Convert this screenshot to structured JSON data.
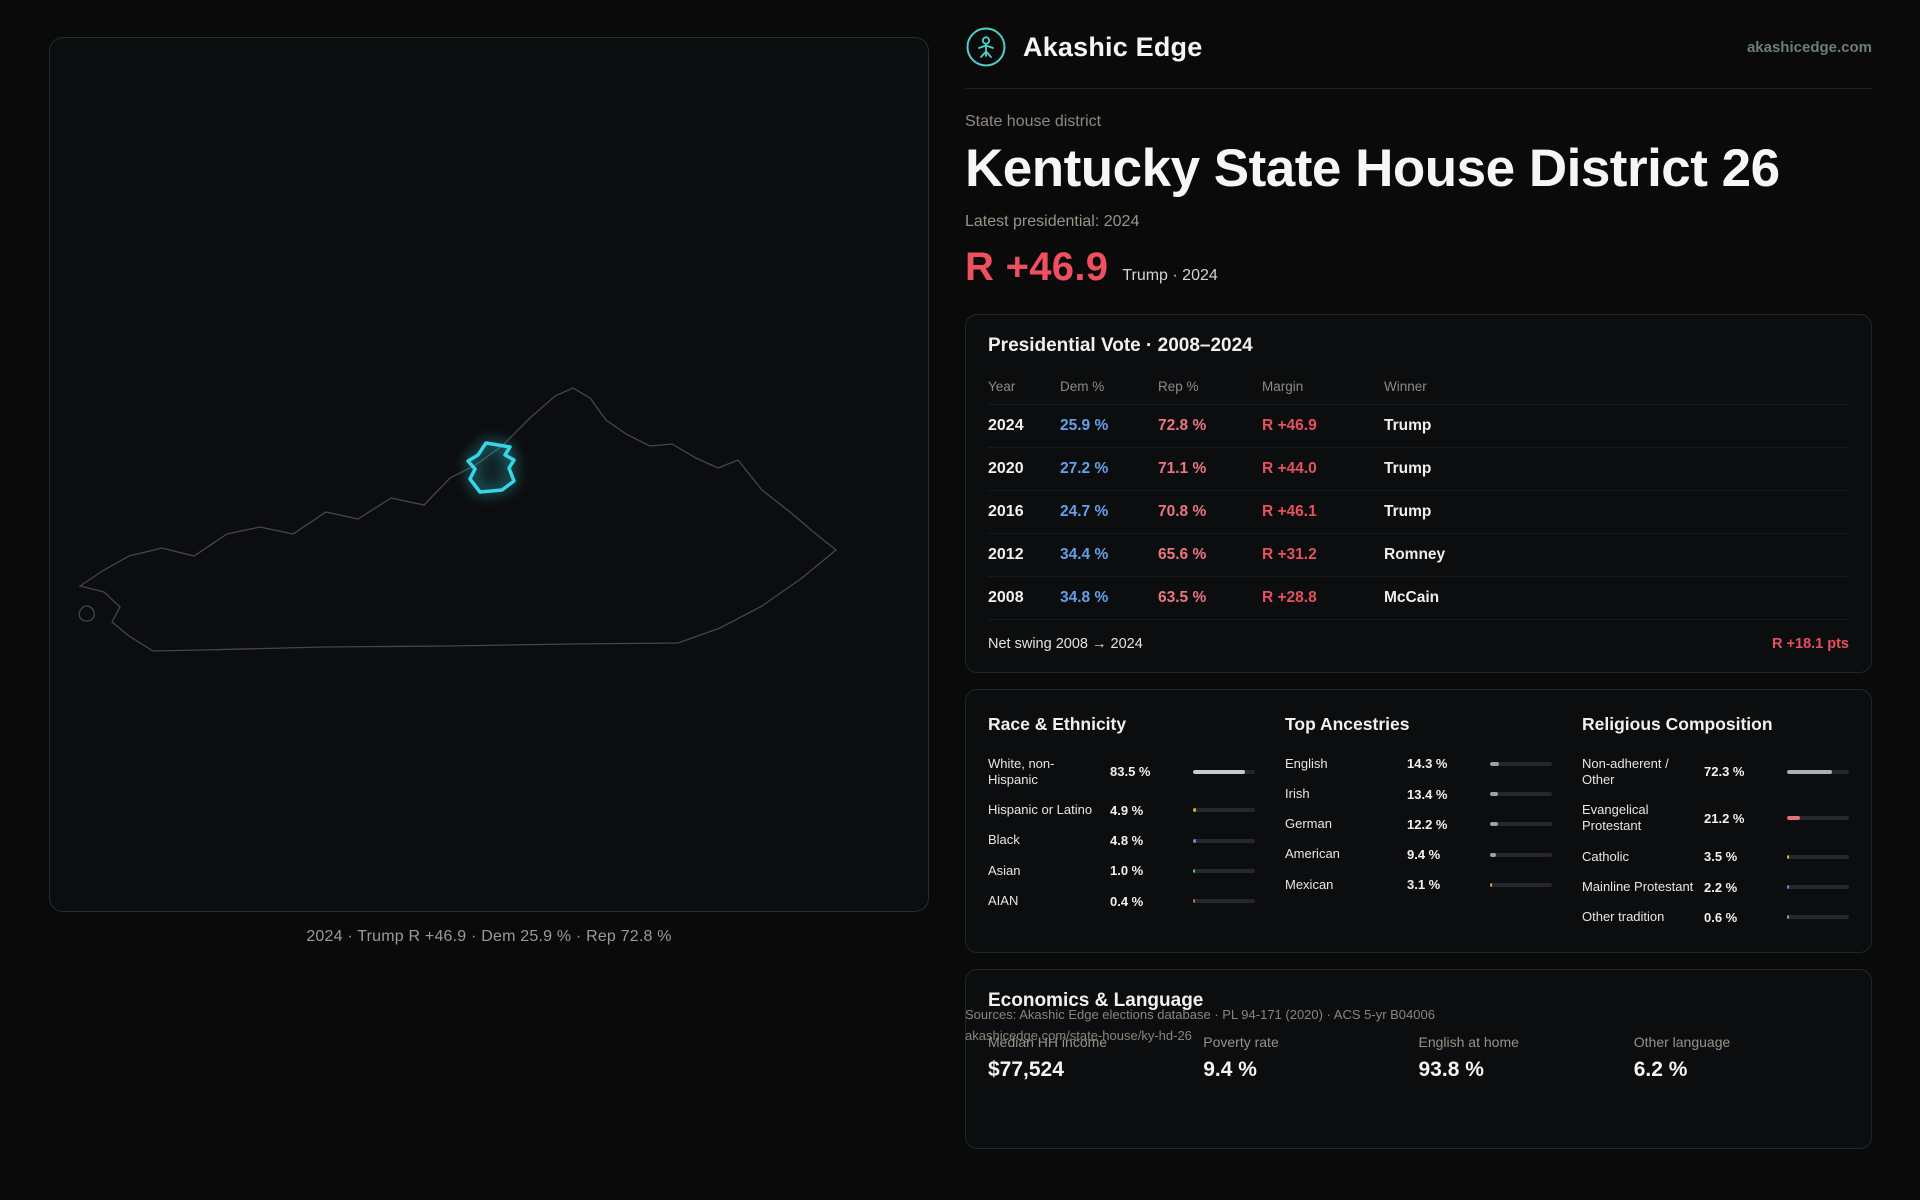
{
  "brand": {
    "name": "Akashic Edge",
    "domain": "akashicedge.com"
  },
  "header": {
    "kicker": "State house district",
    "title": "Kentucky State House District 26",
    "latest_label": "Latest presidential: 2024",
    "headline_margin": "R +46.9",
    "headline_context": "Trump · 2024"
  },
  "map": {
    "caption": "2024 · Trump R +46.9 · Dem 25.9 % · Rep 72.8 %"
  },
  "presidential": {
    "title": "Presidential Vote · 2008–2024",
    "columns": [
      "Year",
      "Dem %",
      "Rep %",
      "Margin",
      "Winner"
    ],
    "rows": [
      {
        "year": "2024",
        "dem": "25.9 %",
        "rep": "72.8 %",
        "margin": "R +46.9",
        "winner": "Trump"
      },
      {
        "year": "2020",
        "dem": "27.2 %",
        "rep": "71.1 %",
        "margin": "R +44.0",
        "winner": "Trump"
      },
      {
        "year": "2016",
        "dem": "24.7 %",
        "rep": "70.8 %",
        "margin": "R +46.1",
        "winner": "Trump"
      },
      {
        "year": "2012",
        "dem": "34.4 %",
        "rep": "65.6 %",
        "margin": "R +31.2",
        "winner": "Romney"
      },
      {
        "year": "2008",
        "dem": "34.8 %",
        "rep": "63.5 %",
        "margin": "R +28.8",
        "winner": "McCain"
      }
    ],
    "net_swing_label": "Net swing 2008 → 2024",
    "net_swing_value": "R +18.1 pts"
  },
  "demographics": {
    "race": {
      "title": "Race & Ethnicity",
      "rows": [
        {
          "label": "White, non-Hispanic",
          "value": "83.5 %",
          "pct": 83.5,
          "color": "#c7cbd2"
        },
        {
          "label": "Hispanic or Latino",
          "value": "4.9 %",
          "pct": 4.9,
          "color": "#e8a23e"
        },
        {
          "label": "Black",
          "value": "4.8 %",
          "pct": 4.8,
          "color": "#8a7ae8"
        },
        {
          "label": "Asian",
          "value": "1.0 %",
          "pct": 1.0,
          "color": "#46c98f"
        },
        {
          "label": "AIAN",
          "value": "0.4 %",
          "pct": 0.4,
          "color": "#e06a4e"
        }
      ]
    },
    "ancestries": {
      "title": "Top Ancestries",
      "rows": [
        {
          "label": "English",
          "value": "14.3 %",
          "pct": 14.3,
          "color": "#9aa0a8"
        },
        {
          "label": "Irish",
          "value": "13.4 %",
          "pct": 13.4,
          "color": "#9aa0a8"
        },
        {
          "label": "German",
          "value": "12.2 %",
          "pct": 12.2,
          "color": "#9aa0a8"
        },
        {
          "label": "American",
          "value": "9.4 %",
          "pct": 9.4,
          "color": "#9aa0a8"
        },
        {
          "label": "Mexican",
          "value": "3.1 %",
          "pct": 3.1,
          "color": "#e8a23e"
        }
      ]
    },
    "religion": {
      "title": "Religious Composition",
      "rows": [
        {
          "label": "Non-adherent / Other",
          "value": "72.3 %",
          "pct": 72.3,
          "color": "#aab0b8"
        },
        {
          "label": "Evangelical Protestant",
          "value": "21.2 %",
          "pct": 21.2,
          "color": "#e8707c"
        },
        {
          "label": "Catholic",
          "value": "3.5 %",
          "pct": 3.5,
          "color": "#e0b94a"
        },
        {
          "label": "Mainline Protestant",
          "value": "2.2 %",
          "pct": 2.2,
          "color": "#6a8fe8"
        },
        {
          "label": "Other tradition",
          "value": "0.6 %",
          "pct": 0.6,
          "color": "#9aa0a8"
        }
      ]
    }
  },
  "economics": {
    "title": "Economics & Language",
    "metrics": [
      {
        "label": "Median HH income",
        "value": "$77,524"
      },
      {
        "label": "Poverty rate",
        "value": "9.4 %"
      },
      {
        "label": "English at home",
        "value": "93.8 %"
      },
      {
        "label": "Other language",
        "value": "6.2 %"
      }
    ]
  },
  "footer": {
    "sources": "Sources: Akashic Edge elections database · PL 94-171 (2020) · ACS 5-yr B04006",
    "permalink": "akashicedge.com/state-house/ky-hd-26"
  }
}
